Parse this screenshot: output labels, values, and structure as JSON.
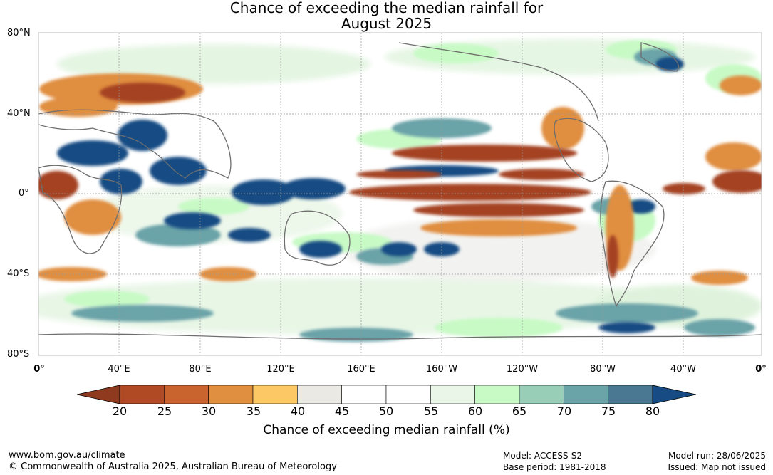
{
  "title": {
    "line1": "Chance of exceeding the median rainfall for",
    "line2": "August 2025"
  },
  "axes": {
    "lat_labels": [
      "80°N",
      "40°N",
      "0°",
      "40°S",
      "80°S"
    ],
    "lon_labels": [
      "0°",
      "40°E",
      "80°E",
      "120°E",
      "160°E",
      "160°W",
      "120°W",
      "80°W",
      "40°W",
      "0°"
    ]
  },
  "colorbar": {
    "title": "Chance of exceeding median rainfall (%)",
    "ticks": [
      "20",
      "25",
      "30",
      "35",
      "40",
      "45",
      "50",
      "55",
      "60",
      "65",
      "70",
      "75",
      "80"
    ],
    "colors": [
      "#8f3a1f",
      "#b04a25",
      "#c9642f",
      "#e08e3f",
      "#fcc865",
      "#ebe9e4",
      "#ffffff",
      "#ffffff",
      "#e9f6e8",
      "#c8fac6",
      "#98cdb8",
      "#6aa3a8",
      "#4a7893",
      "#174b83"
    ]
  },
  "footer": {
    "url": "www.bom.gov.au/climate",
    "copyright": "© Commonwealth of Australia 2025, Australian Bureau of Meteorology",
    "model": "Model: ACCESS-S2",
    "base_period": "Base period: 1981-2018",
    "model_run": "Model run: 28/06/2025",
    "issued": "Issued: Map not issued"
  }
}
